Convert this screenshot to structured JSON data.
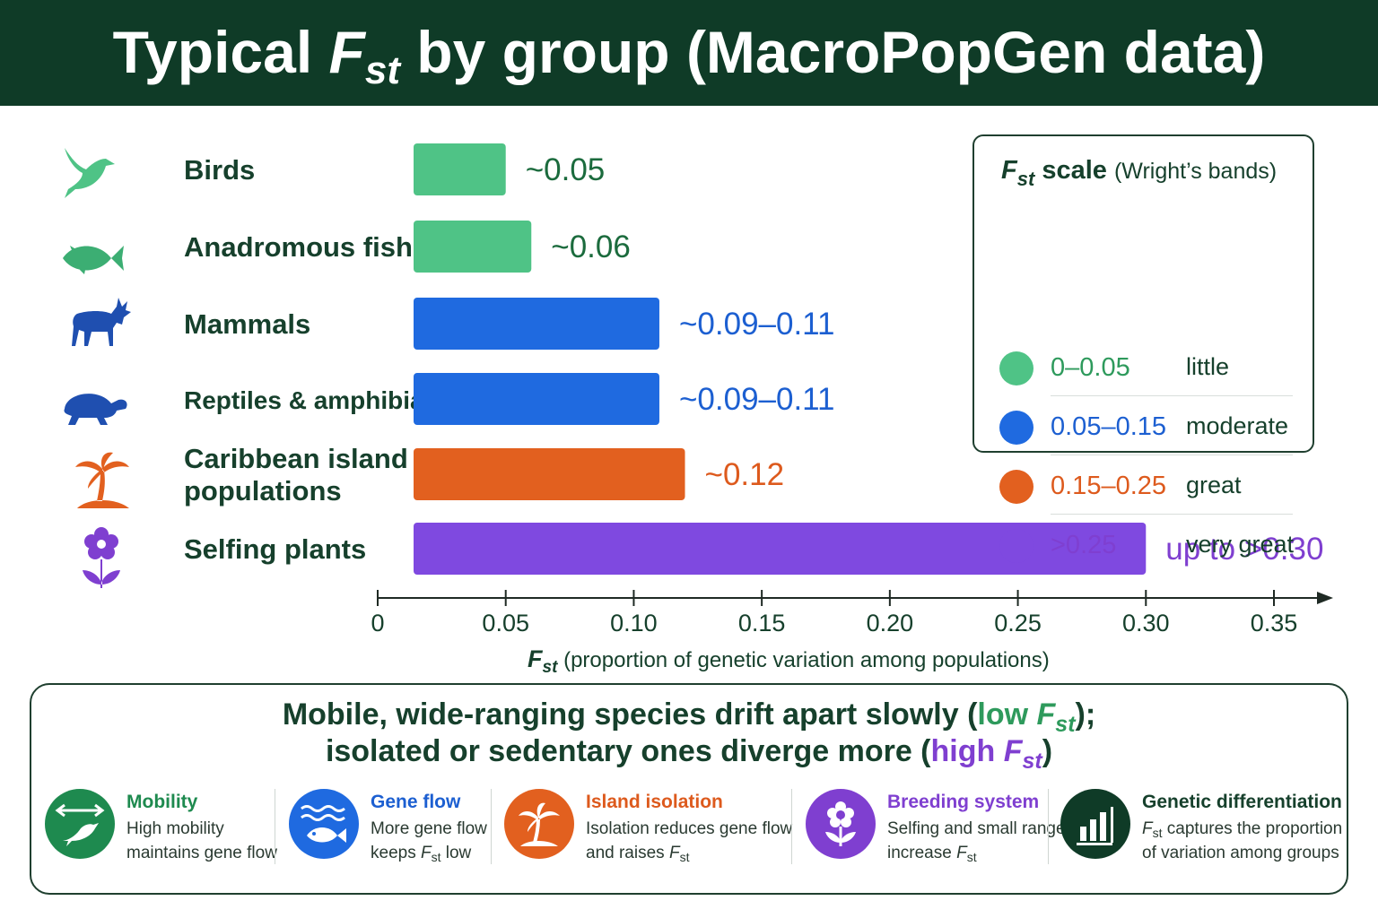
{
  "header": {
    "title_pre": "Typical ",
    "title_f": "F",
    "title_sub": "st",
    "title_post": " by group (MacroPopGen data)"
  },
  "chart_data": {
    "type": "bar",
    "orientation": "horizontal",
    "categories": [
      "Birds",
      "Anadromous fish",
      "Mammals",
      "Reptiles & amphibians",
      "Caribbean island populations",
      "Selfing plants"
    ],
    "category_lines": [
      [
        "Birds"
      ],
      [
        "Anadromous fish"
      ],
      [
        "Mammals"
      ],
      [
        "Reptiles & amphibians"
      ],
      [
        "Caribbean island",
        "populations"
      ],
      [
        "Selfing plants"
      ]
    ],
    "values": [
      0.05,
      0.06,
      0.11,
      0.11,
      0.12,
      0.3
    ],
    "value_labels": [
      "~0.05",
      "~0.06",
      "~0.09–0.11",
      "~0.09–0.11",
      "~0.12",
      "up to >0.30"
    ],
    "bar_colors": [
      "#4fc386",
      "#4fc386",
      "#1f6ae0",
      "#1f6ae0",
      "#e2601f",
      "#7f49e0"
    ],
    "label_colors": [
      "#1b6b3d",
      "#1b6b3d",
      "#1c5fd1",
      "#1c5fd1",
      "#dd5a1d",
      "#7f3fd0"
    ],
    "icons": [
      "bird-icon",
      "fish-icon",
      "deer-icon",
      "turtle-icon",
      "palm-island-icon",
      "flower-icon"
    ],
    "icon_colors": [
      "#4fc386",
      "#3cae73",
      "#1f4fb0",
      "#1f4fb0",
      "#e2601f",
      "#7f3fd0"
    ],
    "xlim": [
      0,
      0.35
    ],
    "xticks": [
      0,
      0.05,
      0.1,
      0.15,
      0.2,
      0.25,
      0.3,
      0.35
    ],
    "xtick_labels": [
      "0",
      "0.05",
      "0.10",
      "0.15",
      "0.20",
      "0.25",
      "0.30",
      "0.35"
    ],
    "xlabel_f": "F",
    "xlabel_sub": "st",
    "xlabel_rest": " (proportion of genetic variation among populations)",
    "grid": false,
    "legend_position": "top-right"
  },
  "legend": {
    "title_f": "F",
    "title_sub": "st",
    "title_word": "scale",
    "title_note": "(Wright’s bands)",
    "items": [
      {
        "range": "0–0.05",
        "word": "little",
        "color": "#4fc386",
        "text_color": "#2e9a5c"
      },
      {
        "range": "0.05–0.15",
        "word": "moderate",
        "color": "#1f6ae0",
        "text_color": "#1c5fd1"
      },
      {
        "range": "0.15–0.25",
        "word": "great",
        "color": "#e2601f",
        "text_color": "#dd5a1d"
      },
      {
        "range": ">0.25",
        "word": "very great",
        "color": "#7f49e0",
        "text_color": "#7f3fd0"
      }
    ]
  },
  "summary": {
    "line1_pre": "Mobile, wide-ranging species drift apart slowly (",
    "line1_low": "low ",
    "line1_post": ");",
    "line2_pre": "isolated or sedentary ones diverge more (",
    "line2_high": "high ",
    "line2_post": ")",
    "f": "F",
    "sub": "st"
  },
  "panels": [
    {
      "title": "Mobility",
      "line1": "High mobility",
      "line2": "maintains gene flow",
      "icon": "arrows-bird-icon",
      "color": "#1e8a4f",
      "title_color": "#1e8a4f"
    },
    {
      "title": "Gene flow",
      "line1": "More gene flow",
      "line2_pre": "keeps ",
      "line2_post": " low",
      "icon": "waves-fish-icon",
      "color": "#1f6ae0",
      "title_color": "#1c5fd1"
    },
    {
      "title": "Island isolation",
      "line1": "Isolation reduces gene flow",
      "line2_pre": "and raises ",
      "line2_post": "",
      "icon": "palm-island-icon",
      "color": "#e2601f",
      "title_color": "#dd5a1d"
    },
    {
      "title": "Breeding system",
      "line1": "Selfing and small ranges",
      "line2_pre": "increase ",
      "line2_post": "",
      "icon": "flower-icon",
      "color": "#7f3fd0",
      "title_color": "#7f3fd0"
    },
    {
      "title": "Genetic differentiation",
      "line1_post": " captures the proportion",
      "line2": "of variation among groups",
      "icon": "bar-chart-icon",
      "color": "#0f3b27",
      "title_color": "#16402c"
    }
  ],
  "f": "F",
  "st": "st"
}
